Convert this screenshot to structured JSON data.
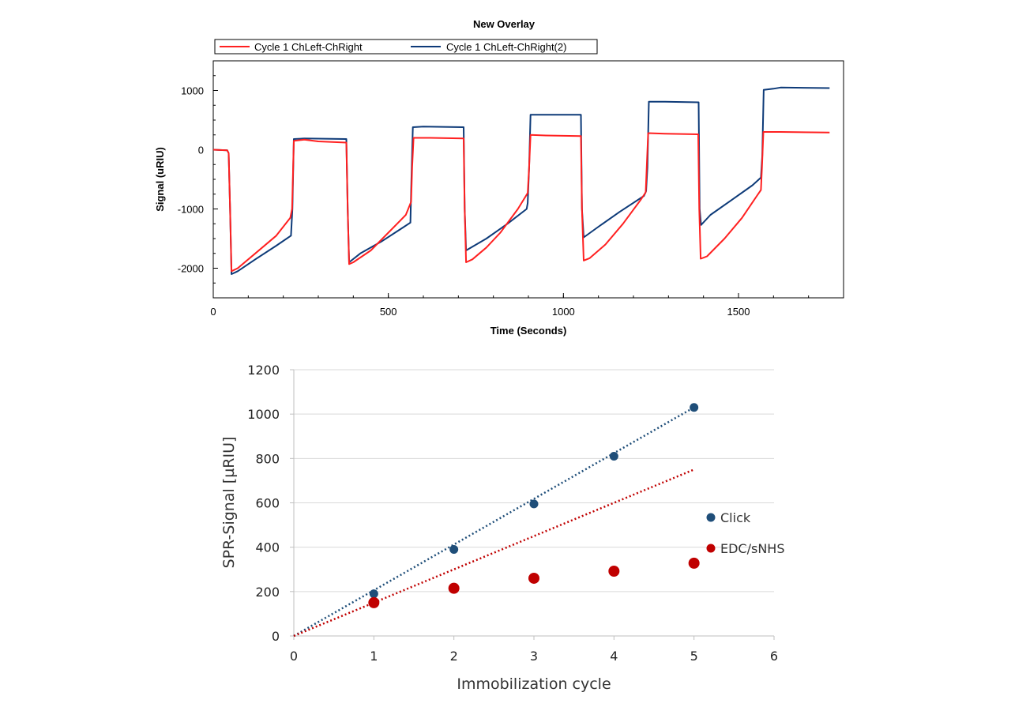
{
  "chart_data": [
    {
      "type": "line",
      "title": "New Overlay",
      "xlabel": "Time (Seconds)",
      "ylabel": "Signal (uRIU)",
      "xlim": [
        0,
        1800
      ],
      "ylim": [
        -2500,
        1500
      ],
      "xticks": [
        0,
        500,
        1000,
        1500
      ],
      "yticks": [
        1000,
        0,
        -1000,
        -2000
      ],
      "legend": "top",
      "series": [
        {
          "name": "Cycle 1 ChLeft-ChRight",
          "color": "#ff2020",
          "points": [
            [
              0,
              0
            ],
            [
              40,
              -10
            ],
            [
              44,
              -60
            ],
            [
              48,
              -1000
            ],
            [
              52,
              -2050
            ],
            [
              70,
              -2000
            ],
            [
              120,
              -1750
            ],
            [
              180,
              -1450
            ],
            [
              220,
              -1150
            ],
            [
              225,
              -1000
            ],
            [
              230,
              150
            ],
            [
              260,
              170
            ],
            [
              300,
              140
            ],
            [
              380,
              120
            ],
            [
              384,
              -1000
            ],
            [
              388,
              -1930
            ],
            [
              400,
              -1900
            ],
            [
              450,
              -1700
            ],
            [
              500,
              -1400
            ],
            [
              550,
              -1100
            ],
            [
              565,
              -880
            ],
            [
              568,
              -300
            ],
            [
              572,
              200
            ],
            [
              620,
              200
            ],
            [
              715,
              190
            ],
            [
              718,
              -1000
            ],
            [
              722,
              -1900
            ],
            [
              740,
              -1850
            ],
            [
              780,
              -1650
            ],
            [
              820,
              -1400
            ],
            [
              870,
              -1000
            ],
            [
              898,
              -730
            ],
            [
              902,
              -300
            ],
            [
              906,
              250
            ],
            [
              950,
              240
            ],
            [
              1050,
              230
            ],
            [
              1053,
              -1000
            ],
            [
              1058,
              -1870
            ],
            [
              1075,
              -1830
            ],
            [
              1120,
              -1600
            ],
            [
              1170,
              -1250
            ],
            [
              1220,
              -850
            ],
            [
              1235,
              -720
            ],
            [
              1238,
              -300
            ],
            [
              1242,
              280
            ],
            [
              1290,
              270
            ],
            [
              1385,
              260
            ],
            [
              1388,
              -1000
            ],
            [
              1392,
              -1840
            ],
            [
              1410,
              -1800
            ],
            [
              1460,
              -1500
            ],
            [
              1510,
              -1150
            ],
            [
              1550,
              -800
            ],
            [
              1564,
              -680
            ],
            [
              1567,
              -300
            ],
            [
              1571,
              300
            ],
            [
              1620,
              300
            ],
            [
              1760,
              290
            ]
          ]
        },
        {
          "name": "Cycle 1 ChLeft-ChRight(2)",
          "color": "#0d3a78",
          "points": [
            [
              0,
              0
            ],
            [
              40,
              -10
            ],
            [
              44,
              -60
            ],
            [
              48,
              -1000
            ],
            [
              52,
              -2100
            ],
            [
              70,
              -2050
            ],
            [
              120,
              -1850
            ],
            [
              180,
              -1620
            ],
            [
              222,
              -1450
            ],
            [
              226,
              -1000
            ],
            [
              230,
              180
            ],
            [
              260,
              190
            ],
            [
              380,
              180
            ],
            [
              384,
              -1000
            ],
            [
              388,
              -1900
            ],
            [
              420,
              -1750
            ],
            [
              480,
              -1550
            ],
            [
              540,
              -1320
            ],
            [
              563,
              -1230
            ],
            [
              566,
              -500
            ],
            [
              570,
              380
            ],
            [
              600,
              390
            ],
            [
              715,
              380
            ],
            [
              718,
              -1000
            ],
            [
              722,
              -1700
            ],
            [
              780,
              -1500
            ],
            [
              840,
              -1250
            ],
            [
              895,
              -1000
            ],
            [
              898,
              -900
            ],
            [
              902,
              -300
            ],
            [
              906,
              590
            ],
            [
              950,
              590
            ],
            [
              1050,
              590
            ],
            [
              1053,
              -1000
            ],
            [
              1058,
              -1480
            ],
            [
              1100,
              -1300
            ],
            [
              1160,
              -1050
            ],
            [
              1230,
              -780
            ],
            [
              1236,
              -700
            ],
            [
              1240,
              -300
            ],
            [
              1244,
              810
            ],
            [
              1290,
              810
            ],
            [
              1386,
              800
            ],
            [
              1389,
              -1000
            ],
            [
              1393,
              -1270
            ],
            [
              1420,
              -1100
            ],
            [
              1480,
              -850
            ],
            [
              1540,
              -600
            ],
            [
              1564,
              -470
            ],
            [
              1568,
              -100
            ],
            [
              1572,
              1010
            ],
            [
              1600,
              1030
            ],
            [
              1620,
              1050
            ],
            [
              1760,
              1040
            ]
          ]
        }
      ]
    },
    {
      "type": "scatter",
      "title": "",
      "xlabel": "Immobilization cycle",
      "ylabel": "SPR-Signal [µRIU]",
      "xlim": [
        0,
        6
      ],
      "ylim": [
        0,
        1200
      ],
      "xticks": [
        0,
        1,
        2,
        3,
        4,
        5,
        6
      ],
      "yticks": [
        0,
        200,
        400,
        600,
        800,
        1000,
        1200
      ],
      "grid": true,
      "legend": "right",
      "series": [
        {
          "name": "Click",
          "color": "#1f4e79",
          "x": [
            1,
            2,
            3,
            4,
            5
          ],
          "y": [
            190,
            390,
            595,
            810,
            1030
          ],
          "trendline": [
            [
              0,
              0
            ],
            [
              5,
              1030
            ]
          ]
        },
        {
          "name": "EDC/sNHS",
          "color": "#c00000",
          "x": [
            1,
            2,
            3,
            4,
            5
          ],
          "y": [
            150,
            215,
            260,
            292,
            328
          ],
          "trendline": [
            [
              0,
              0
            ],
            [
              5,
              750
            ]
          ]
        }
      ]
    }
  ]
}
